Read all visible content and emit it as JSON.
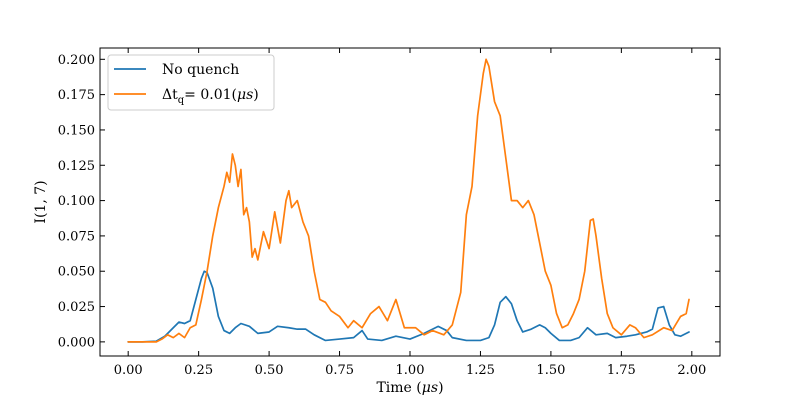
{
  "chart_data": {
    "type": "line",
    "title": "",
    "xlabel_prefix": "Time (",
    "xlabel_unit": "μs",
    "xlabel_suffix": ")",
    "ylabel": "I(1, 7)",
    "xlim": [
      -0.1,
      2.1
    ],
    "ylim": [
      -0.01,
      0.208
    ],
    "x_ticks": [
      0.0,
      0.25,
      0.5,
      0.75,
      1.0,
      1.25,
      1.5,
      1.75,
      2.0
    ],
    "x_tick_labels": [
      "0.00",
      "0.25",
      "0.50",
      "0.75",
      "1.00",
      "1.25",
      "1.50",
      "1.75",
      "2.00"
    ],
    "y_ticks": [
      0.0,
      0.025,
      0.05,
      0.075,
      0.1,
      0.125,
      0.15,
      0.175,
      0.2
    ],
    "y_tick_labels": [
      "0.000",
      "0.025",
      "0.050",
      "0.075",
      "0.100",
      "0.125",
      "0.150",
      "0.175",
      "0.200"
    ],
    "grid": false,
    "legend_position": "top-left",
    "series": [
      {
        "name": "No quench",
        "legend_parts": {
          "main": "No quench"
        },
        "color": "#1f77b4",
        "points": [
          [
            0.0,
            0.0
          ],
          [
            0.05,
            0.0
          ],
          [
            0.1,
            0.0005
          ],
          [
            0.13,
            0.004
          ],
          [
            0.16,
            0.01
          ],
          [
            0.18,
            0.014
          ],
          [
            0.2,
            0.013
          ],
          [
            0.22,
            0.015
          ],
          [
            0.24,
            0.03
          ],
          [
            0.26,
            0.045
          ],
          [
            0.27,
            0.05
          ],
          [
            0.28,
            0.049
          ],
          [
            0.3,
            0.038
          ],
          [
            0.32,
            0.018
          ],
          [
            0.34,
            0.008
          ],
          [
            0.36,
            0.006
          ],
          [
            0.38,
            0.01
          ],
          [
            0.4,
            0.013
          ],
          [
            0.43,
            0.011
          ],
          [
            0.46,
            0.006
          ],
          [
            0.5,
            0.007
          ],
          [
            0.53,
            0.011
          ],
          [
            0.57,
            0.01
          ],
          [
            0.6,
            0.009
          ],
          [
            0.63,
            0.009
          ],
          [
            0.66,
            0.005
          ],
          [
            0.7,
            0.001
          ],
          [
            0.75,
            0.002
          ],
          [
            0.8,
            0.003
          ],
          [
            0.83,
            0.008
          ],
          [
            0.85,
            0.002
          ],
          [
            0.9,
            0.001
          ],
          [
            0.95,
            0.004
          ],
          [
            1.0,
            0.002
          ],
          [
            1.05,
            0.006
          ],
          [
            1.1,
            0.011
          ],
          [
            1.13,
            0.008
          ],
          [
            1.15,
            0.003
          ],
          [
            1.2,
            0.001
          ],
          [
            1.25,
            0.001
          ],
          [
            1.28,
            0.003
          ],
          [
            1.3,
            0.012
          ],
          [
            1.32,
            0.028
          ],
          [
            1.34,
            0.032
          ],
          [
            1.36,
            0.027
          ],
          [
            1.38,
            0.015
          ],
          [
            1.4,
            0.007
          ],
          [
            1.43,
            0.009
          ],
          [
            1.46,
            0.012
          ],
          [
            1.48,
            0.01
          ],
          [
            1.5,
            0.006
          ],
          [
            1.53,
            0.001
          ],
          [
            1.57,
            0.001
          ],
          [
            1.6,
            0.003
          ],
          [
            1.63,
            0.01
          ],
          [
            1.66,
            0.005
          ],
          [
            1.7,
            0.006
          ],
          [
            1.73,
            0.003
          ],
          [
            1.77,
            0.004
          ],
          [
            1.8,
            0.005
          ],
          [
            1.84,
            0.007
          ],
          [
            1.86,
            0.009
          ],
          [
            1.88,
            0.024
          ],
          [
            1.9,
            0.025
          ],
          [
            1.92,
            0.012
          ],
          [
            1.94,
            0.005
          ],
          [
            1.96,
            0.004
          ],
          [
            1.99,
            0.007
          ]
        ]
      },
      {
        "name": "Δt_q= 0.01(μs)",
        "legend_parts": {
          "prefix": "Δt",
          "subscript": "q",
          "suffix": "= 0.01(",
          "unit": "μs",
          "close": ")"
        },
        "color": "#ff7f0e",
        "points": [
          [
            0.0,
            0.0
          ],
          [
            0.1,
            0.0
          ],
          [
            0.12,
            0.002
          ],
          [
            0.14,
            0.005
          ],
          [
            0.16,
            0.003
          ],
          [
            0.18,
            0.006
          ],
          [
            0.2,
            0.003
          ],
          [
            0.22,
            0.01
          ],
          [
            0.24,
            0.012
          ],
          [
            0.26,
            0.03
          ],
          [
            0.28,
            0.05
          ],
          [
            0.3,
            0.075
          ],
          [
            0.32,
            0.095
          ],
          [
            0.34,
            0.11
          ],
          [
            0.35,
            0.12
          ],
          [
            0.36,
            0.113
          ],
          [
            0.37,
            0.133
          ],
          [
            0.38,
            0.125
          ],
          [
            0.39,
            0.11
          ],
          [
            0.4,
            0.122
          ],
          [
            0.41,
            0.09
          ],
          [
            0.42,
            0.095
          ],
          [
            0.43,
            0.085
          ],
          [
            0.44,
            0.06
          ],
          [
            0.45,
            0.066
          ],
          [
            0.46,
            0.058
          ],
          [
            0.48,
            0.078
          ],
          [
            0.5,
            0.066
          ],
          [
            0.52,
            0.092
          ],
          [
            0.54,
            0.07
          ],
          [
            0.56,
            0.1
          ],
          [
            0.57,
            0.107
          ],
          [
            0.58,
            0.095
          ],
          [
            0.6,
            0.1
          ],
          [
            0.62,
            0.085
          ],
          [
            0.64,
            0.075
          ],
          [
            0.66,
            0.05
          ],
          [
            0.68,
            0.03
          ],
          [
            0.7,
            0.028
          ],
          [
            0.72,
            0.022
          ],
          [
            0.75,
            0.018
          ],
          [
            0.78,
            0.01
          ],
          [
            0.8,
            0.015
          ],
          [
            0.83,
            0.01
          ],
          [
            0.86,
            0.02
          ],
          [
            0.89,
            0.025
          ],
          [
            0.92,
            0.015
          ],
          [
            0.95,
            0.03
          ],
          [
            0.98,
            0.01
          ],
          [
            1.02,
            0.01
          ],
          [
            1.05,
            0.005
          ],
          [
            1.08,
            0.008
          ],
          [
            1.12,
            0.005
          ],
          [
            1.15,
            0.012
          ],
          [
            1.18,
            0.035
          ],
          [
            1.2,
            0.09
          ],
          [
            1.22,
            0.11
          ],
          [
            1.24,
            0.16
          ],
          [
            1.26,
            0.19
          ],
          [
            1.27,
            0.2
          ],
          [
            1.28,
            0.195
          ],
          [
            1.3,
            0.17
          ],
          [
            1.32,
            0.16
          ],
          [
            1.34,
            0.13
          ],
          [
            1.36,
            0.1
          ],
          [
            1.38,
            0.1
          ],
          [
            1.4,
            0.095
          ],
          [
            1.42,
            0.1
          ],
          [
            1.44,
            0.09
          ],
          [
            1.46,
            0.07
          ],
          [
            1.48,
            0.05
          ],
          [
            1.5,
            0.04
          ],
          [
            1.52,
            0.02
          ],
          [
            1.54,
            0.01
          ],
          [
            1.56,
            0.012
          ],
          [
            1.58,
            0.02
          ],
          [
            1.6,
            0.03
          ],
          [
            1.62,
            0.05
          ],
          [
            1.64,
            0.086
          ],
          [
            1.65,
            0.087
          ],
          [
            1.66,
            0.075
          ],
          [
            1.68,
            0.045
          ],
          [
            1.7,
            0.02
          ],
          [
            1.72,
            0.01
          ],
          [
            1.75,
            0.005
          ],
          [
            1.78,
            0.012
          ],
          [
            1.8,
            0.01
          ],
          [
            1.83,
            0.003
          ],
          [
            1.86,
            0.005
          ],
          [
            1.9,
            0.01
          ],
          [
            1.93,
            0.008
          ],
          [
            1.96,
            0.018
          ],
          [
            1.98,
            0.02
          ],
          [
            1.99,
            0.03
          ]
        ]
      }
    ]
  }
}
